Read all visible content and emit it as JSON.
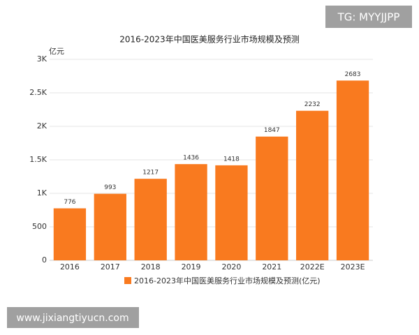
{
  "chart_data": {
    "type": "bar",
    "title": "2016-2023年中国医美服务行业市场规模及预测",
    "y_label": "亿元",
    "categories": [
      "2016",
      "2017",
      "2018",
      "2019",
      "2020",
      "2021",
      "2022E",
      "2023E"
    ],
    "series": [
      {
        "name": "2016-2023年中国医美服务行业市场规模及预测(亿元)",
        "color": "#f97a1f",
        "values": [
          776,
          993,
          1217,
          1436,
          1418,
          1847,
          2232,
          2683
        ]
      }
    ],
    "ylim": [
      0,
      3000
    ],
    "yticks": [
      0,
      500,
      {
        "value": 1000,
        "label": "1K"
      },
      {
        "value": 1500,
        "label": "1.5K"
      },
      {
        "value": 2000,
        "label": "2K"
      },
      {
        "value": 2500,
        "label": "2.5K"
      },
      {
        "value": 3000,
        "label": "3K"
      }
    ],
    "grid": true,
    "legend": "bottom",
    "watermarks": [
      "TG: MYYJJPP",
      "www.jixiangtiyucn.com"
    ]
  }
}
